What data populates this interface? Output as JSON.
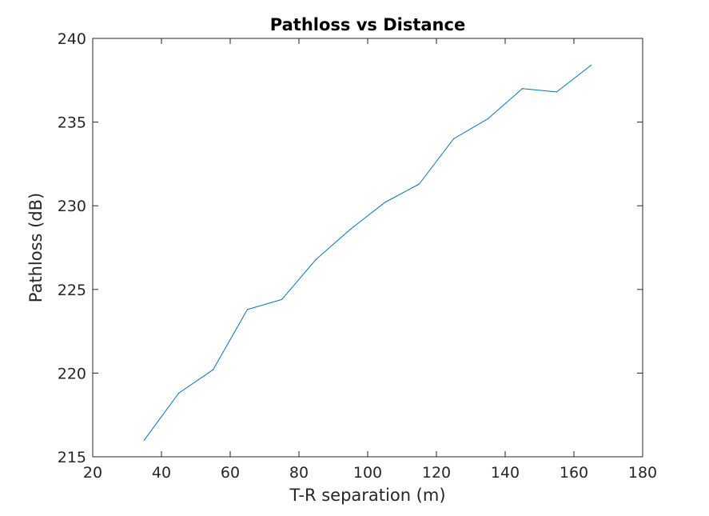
{
  "chart_data": {
    "type": "line",
    "title": "Pathloss vs Distance",
    "xlabel": "T-R separation (m)",
    "ylabel": "Pathloss (dB)",
    "xlim": [
      20,
      180
    ],
    "ylim": [
      215,
      240
    ],
    "xticks": [
      20,
      40,
      60,
      80,
      100,
      120,
      140,
      160,
      180
    ],
    "yticks": [
      215,
      220,
      225,
      230,
      235,
      240
    ],
    "grid": false,
    "legend": "none",
    "series": [
      {
        "color": "#0072BD",
        "x": [
          35,
          45,
          55,
          65,
          75,
          85,
          95,
          105,
          115,
          125,
          135,
          145,
          155,
          165
        ],
        "y": [
          216.0,
          218.8,
          220.2,
          223.8,
          224.4,
          226.8,
          228.6,
          230.2,
          231.3,
          234.0,
          235.2,
          237.0,
          236.8,
          238.4
        ]
      }
    ]
  }
}
